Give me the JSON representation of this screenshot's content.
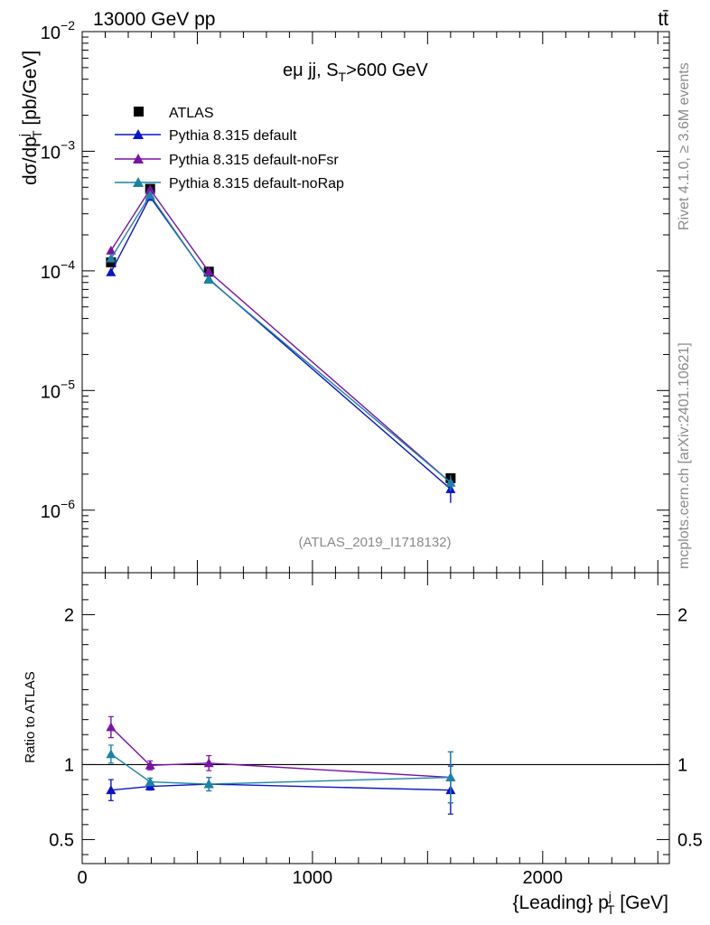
{
  "header": {
    "left_label": "13000 GeV pp",
    "right_label": "tt̄"
  },
  "side_text": {
    "rivet": "Rivet 4.1.0, ≥ 3.6M events",
    "mcplots": "mcplots.cern.ch [arXiv:2401.10621]"
  },
  "colors": {
    "data": "#000000",
    "default": "#0a14c8",
    "noFsr": "#7a12a8",
    "noRap": "#1a84a8"
  },
  "chart_data": [
    {
      "type": "line",
      "panel": "main",
      "title": "eμ jj, S_T>600 GeV",
      "title_parts": {
        "main": "eμ jj, S",
        "sub": "T",
        "tail": ">600 GeV"
      },
      "analysis_id": "(ATLAS_2019_I1718132)",
      "ylabel_parts": {
        "a": "dσ/dp",
        "sup": "j",
        "sub": "T",
        "b": " [pb/GeV]"
      },
      "yscale": "log",
      "ylim": [
        3e-07,
        0.01
      ],
      "xlim": [
        0,
        2550
      ],
      "ytick_labels": [
        {
          "value": 0.01,
          "base": "10",
          "exp": "−2"
        },
        {
          "value": 0.001,
          "base": "10",
          "exp": "−3"
        },
        {
          "value": 0.0001,
          "base": "10",
          "exp": "−4"
        },
        {
          "value": 1e-05,
          "base": "10",
          "exp": "−5"
        },
        {
          "value": 1e-06,
          "base": "10",
          "exp": "−6"
        }
      ],
      "x": [
        125,
        295,
        550,
        1600
      ],
      "series": [
        {
          "name": "ATLAS",
          "marker": "square",
          "color_key": "data",
          "values": [
            0.000118,
            0.000485,
            9.85e-05,
            1.85e-06
          ],
          "err": [
            8e-06,
            2e-05,
            4e-06,
            1.5e-07
          ]
        },
        {
          "name": "Pythia 8.315 default",
          "marker": "triangle",
          "color_key": "default",
          "values": [
            9.75e-05,
            0.000415,
            8.55e-05,
            1.5e-06
          ],
          "err": [
            5e-06,
            1e-05,
            2e-06,
            3.5e-07
          ]
        },
        {
          "name": "Pythia 8.315 default-noFsr",
          "marker": "triangle",
          "color_key": "noFsr",
          "values": [
            0.000148,
            0.00048,
            9.85e-05,
            1.7e-06
          ],
          "err": [
            6e-06,
            1e-05,
            3e-06,
            2.5e-07
          ]
        },
        {
          "name": "Pythia 8.315 default-noRap",
          "marker": "triangle",
          "color_key": "noRap",
          "values": [
            0.000127,
            0.00043,
            8.45e-05,
            1.7e-06
          ],
          "err": [
            5e-06,
            1e-05,
            2e-06,
            2.5e-07
          ]
        }
      ]
    },
    {
      "type": "line",
      "panel": "ratio",
      "ylabel": "Ratio to ATLAS",
      "xlabel_parts": {
        "a": "{Leading} p",
        "sup": "j",
        "sub": "T",
        "b": " [GeV]"
      },
      "ylim": [
        0.34,
        2.28
      ],
      "xlim": [
        0,
        2550
      ],
      "yticks": [
        0.5,
        1,
        2
      ],
      "ytick_labels": [
        "0.5",
        "1",
        "2"
      ],
      "xticks": [
        0,
        1000,
        2000
      ],
      "xtick_labels": [
        "0",
        "1000",
        "2000"
      ],
      "reference": 1,
      "x": [
        125,
        295,
        550,
        1600
      ],
      "series": [
        {
          "name": "Pythia 8.315 default",
          "color_key": "default",
          "values": [
            0.83,
            0.855,
            0.87,
            0.83
          ],
          "err": [
            0.07,
            0.025,
            0.045,
            0.16
          ]
        },
        {
          "name": "Pythia 8.315 default-noFsr",
          "color_key": "noFsr",
          "values": [
            1.25,
            0.995,
            1.01,
            0.915
          ],
          "err": [
            0.07,
            0.03,
            0.05,
            0.17
          ]
        },
        {
          "name": "Pythia 8.315 default-noRap",
          "color_key": "noRap",
          "values": [
            1.07,
            0.885,
            0.87,
            0.915
          ],
          "err": [
            0.06,
            0.025,
            0.045,
            0.17
          ]
        }
      ]
    }
  ]
}
